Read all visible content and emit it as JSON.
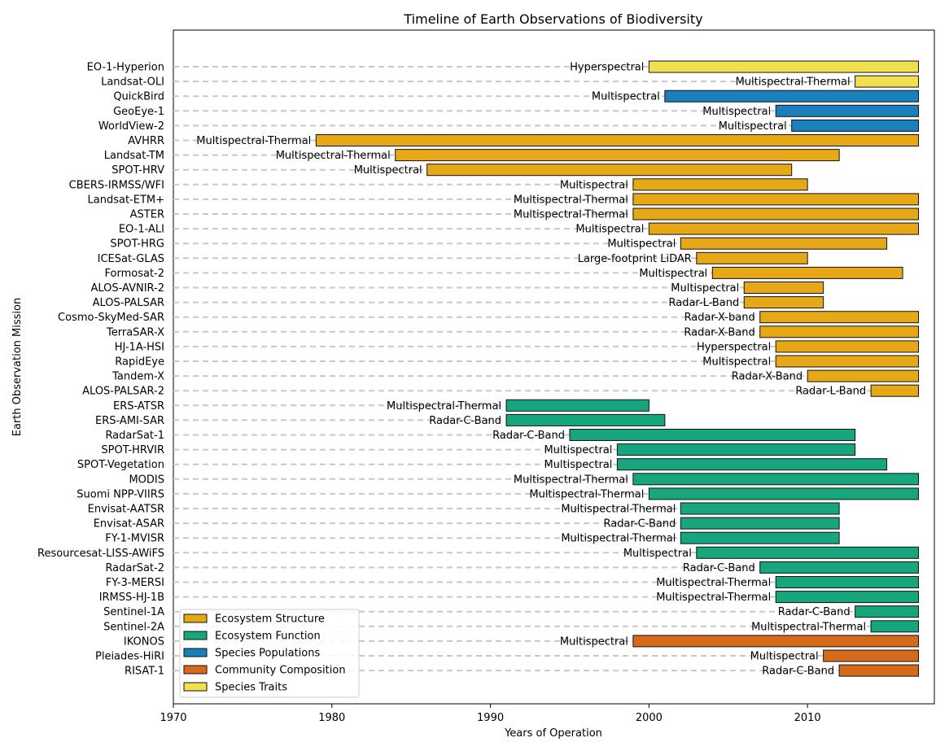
{
  "chart_data": {
    "type": "bar",
    "orientation": "horizontal",
    "title": "Timeline of Earth Observations of Biodiversity",
    "xlabel": "Years of Operation",
    "ylabel": "Earth Observation Mission",
    "xlim": [
      1970,
      2018
    ],
    "xticks": [
      1970,
      1980,
      1990,
      2000,
      2010
    ],
    "guide_lines": "dashed",
    "legend_position": "lower-left",
    "categories_legend": [
      {
        "name": "Ecosystem Structure",
        "color": "#E6A817"
      },
      {
        "name": "Ecosystem Function",
        "color": "#17A57E"
      },
      {
        "name": "Species Populations",
        "color": "#1A80BB"
      },
      {
        "name": "Community Composition",
        "color": "#D6691A"
      },
      {
        "name": "Species Traits",
        "color": "#F0E050"
      }
    ],
    "missions": [
      {
        "name": "EO-1-Hyperion",
        "sensor": "Hyperspectral",
        "start": 2000,
        "end": 2017,
        "category": "Species Traits"
      },
      {
        "name": "Landsat-OLI",
        "sensor": "Multispectral-Thermal",
        "start": 2013,
        "end": 2017,
        "category": "Species Traits"
      },
      {
        "name": "QuickBird",
        "sensor": "Multispectral",
        "start": 2001,
        "end": 2017,
        "category": "Species Populations"
      },
      {
        "name": "GeoEye-1",
        "sensor": "Multispectral",
        "start": 2008,
        "end": 2017,
        "category": "Species Populations"
      },
      {
        "name": "WorldView-2",
        "sensor": "Multispectral",
        "start": 2009,
        "end": 2017,
        "category": "Species Populations"
      },
      {
        "name": "AVHRR",
        "sensor": "Multispectral-Thermal",
        "start": 1979,
        "end": 2017,
        "category": "Ecosystem Structure"
      },
      {
        "name": "Landsat-TM",
        "sensor": "Multispectral-Thermal",
        "start": 1984,
        "end": 2012,
        "category": "Ecosystem Structure"
      },
      {
        "name": "SPOT-HRV",
        "sensor": "Multispectral",
        "start": 1986,
        "end": 2009,
        "category": "Ecosystem Structure"
      },
      {
        "name": "CBERS-IRMSS/WFI",
        "sensor": "Multispectral",
        "start": 1999,
        "end": 2010,
        "category": "Ecosystem Structure"
      },
      {
        "name": "Landsat-ETM+",
        "sensor": "Multispectral-Thermal",
        "start": 1999,
        "end": 2017,
        "category": "Ecosystem Structure"
      },
      {
        "name": "ASTER",
        "sensor": "Multispectral-Thermal",
        "start": 1999,
        "end": 2017,
        "category": "Ecosystem Structure"
      },
      {
        "name": "EO-1-ALI",
        "sensor": "Multispectral",
        "start": 2000,
        "end": 2017,
        "category": "Ecosystem Structure"
      },
      {
        "name": "SPOT-HRG",
        "sensor": "Multispectral",
        "start": 2002,
        "end": 2015,
        "category": "Ecosystem Structure"
      },
      {
        "name": "ICESat-GLAS",
        "sensor": "Large-footprint LiDAR",
        "start": 2003,
        "end": 2010,
        "category": "Ecosystem Structure"
      },
      {
        "name": "Formosat-2",
        "sensor": "Multispectral",
        "start": 2004,
        "end": 2016,
        "category": "Ecosystem Structure"
      },
      {
        "name": "ALOS-AVNIR-2",
        "sensor": "Multispectral",
        "start": 2006,
        "end": 2011,
        "category": "Ecosystem Structure"
      },
      {
        "name": "ALOS-PALSAR",
        "sensor": "Radar-L-Band",
        "start": 2006,
        "end": 2011,
        "category": "Ecosystem Structure"
      },
      {
        "name": "Cosmo-SkyMed-SAR",
        "sensor": "Radar-X-band",
        "start": 2007,
        "end": 2017,
        "category": "Ecosystem Structure"
      },
      {
        "name": "TerraSAR-X",
        "sensor": "Radar-X-Band",
        "start": 2007,
        "end": 2017,
        "category": "Ecosystem Structure"
      },
      {
        "name": "HJ-1A-HSI",
        "sensor": "Hyperspectral",
        "start": 2008,
        "end": 2017,
        "category": "Ecosystem Structure"
      },
      {
        "name": "RapidEye",
        "sensor": "Multispectral",
        "start": 2008,
        "end": 2017,
        "category": "Ecosystem Structure"
      },
      {
        "name": "Tandem-X",
        "sensor": "Radar-X-Band",
        "start": 2010,
        "end": 2017,
        "category": "Ecosystem Structure"
      },
      {
        "name": "ALOS-PALSAR-2",
        "sensor": "Radar-L-Band",
        "start": 2014,
        "end": 2017,
        "category": "Ecosystem Structure"
      },
      {
        "name": "ERS-ATSR",
        "sensor": "Multispectral-Thermal",
        "start": 1991,
        "end": 2000,
        "category": "Ecosystem Function"
      },
      {
        "name": "ERS-AMI-SAR",
        "sensor": "Radar-C-Band",
        "start": 1991,
        "end": 2001,
        "category": "Ecosystem Function"
      },
      {
        "name": "RadarSat-1",
        "sensor": "Radar-C-Band",
        "start": 1995,
        "end": 2013,
        "category": "Ecosystem Function"
      },
      {
        "name": "SPOT-HRVIR",
        "sensor": "Multispectral",
        "start": 1998,
        "end": 2013,
        "category": "Ecosystem Function"
      },
      {
        "name": "SPOT-Vegetation",
        "sensor": "Multispectral",
        "start": 1998,
        "end": 2015,
        "category": "Ecosystem Function"
      },
      {
        "name": "MODIS",
        "sensor": "Multispectral-Thermal",
        "start": 1999,
        "end": 2017,
        "category": "Ecosystem Function"
      },
      {
        "name": "Suomi NPP-VIIRS",
        "sensor": "Multispectral-Thermal",
        "start": 2000,
        "end": 2017,
        "category": "Ecosystem Function"
      },
      {
        "name": "Envisat-AATSR",
        "sensor": "Multispectral-Thermal",
        "start": 2002,
        "end": 2012,
        "category": "Ecosystem Function"
      },
      {
        "name": "Envisat-ASAR",
        "sensor": "Radar-C-Band",
        "start": 2002,
        "end": 2012,
        "category": "Ecosystem Function"
      },
      {
        "name": "FY-1-MVISR",
        "sensor": "Multispectral-Thermal",
        "start": 2002,
        "end": 2012,
        "category": "Ecosystem Function"
      },
      {
        "name": "Resourcesat-LISS-AWiFS",
        "sensor": "Multispectral",
        "start": 2003,
        "end": 2017,
        "category": "Ecosystem Function"
      },
      {
        "name": "RadarSat-2",
        "sensor": "Radar-C-Band",
        "start": 2007,
        "end": 2017,
        "category": "Ecosystem Function"
      },
      {
        "name": "FY-3-MERSI",
        "sensor": "Multispectral-Thermal",
        "start": 2008,
        "end": 2017,
        "category": "Ecosystem Function"
      },
      {
        "name": "IRMSS-HJ-1B",
        "sensor": "Multispectral-Thermal",
        "start": 2008,
        "end": 2017,
        "category": "Ecosystem Function"
      },
      {
        "name": "Sentinel-1A",
        "sensor": "Radar-C-Band",
        "start": 2013,
        "end": 2017,
        "category": "Ecosystem Function"
      },
      {
        "name": "Sentinel-2A",
        "sensor": "Multispectral-Thermal",
        "start": 2014,
        "end": 2017,
        "category": "Ecosystem Function"
      },
      {
        "name": "IKONOS",
        "sensor": "Multispectral",
        "start": 1999,
        "end": 2017,
        "category": "Community Composition"
      },
      {
        "name": "Pleiades-HiRI",
        "sensor": "Multispectral",
        "start": 2011,
        "end": 2017,
        "category": "Community Composition"
      },
      {
        "name": "RISAT-1",
        "sensor": "Radar-C-Band",
        "start": 2012,
        "end": 2017,
        "category": "Community Composition"
      }
    ]
  }
}
